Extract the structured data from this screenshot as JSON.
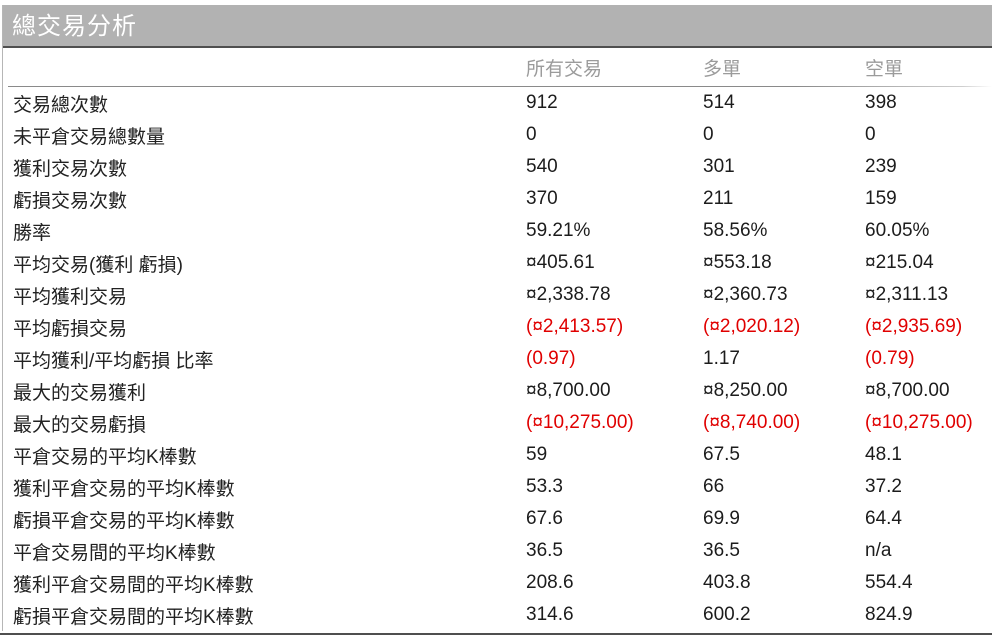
{
  "title": "總交易分析",
  "colors": {
    "title_bar_bg": "#b2b2b2",
    "title_text": "#ffffff",
    "header_text": "#9b9b9b",
    "body_text": "#1c1c1c",
    "negative_value": "#e00000"
  },
  "table": {
    "columns": [
      "所有交易",
      "多單",
      "空單"
    ],
    "rows": [
      {
        "label": "交易總次數",
        "values": [
          "912",
          "514",
          "398"
        ]
      },
      {
        "label": "未平倉交易總數量",
        "values": [
          "0",
          "0",
          "0"
        ]
      },
      {
        "label": "獲利交易次數",
        "values": [
          "540",
          "301",
          "239"
        ]
      },
      {
        "label": "虧損交易次數",
        "values": [
          "370",
          "211",
          "159"
        ]
      },
      {
        "label": "勝率",
        "values": [
          "59.21%",
          "58.56%",
          "60.05%"
        ]
      },
      {
        "label": "平均交易(獲利 虧損)",
        "values": [
          "¤405.61",
          "¤553.18",
          "¤215.04"
        ]
      },
      {
        "label": "平均獲利交易",
        "values": [
          "¤2,338.78",
          "¤2,360.73",
          "¤2,311.13"
        ]
      },
      {
        "label": "平均虧損交易",
        "values": [
          "(¤2,413.57)",
          "(¤2,020.12)",
          "(¤2,935.69)"
        ],
        "negative": [
          true,
          true,
          true
        ]
      },
      {
        "label": "平均獲利/平均虧損 比率",
        "values": [
          "(0.97)",
          "1.17",
          "(0.79)"
        ],
        "negative": [
          true,
          false,
          true
        ]
      },
      {
        "label": "最大的交易獲利",
        "values": [
          "¤8,700.00",
          "¤8,250.00",
          "¤8,700.00"
        ]
      },
      {
        "label": "最大的交易虧損",
        "values": [
          "(¤10,275.00)",
          "(¤8,740.00)",
          "(¤10,275.00)"
        ],
        "negative": [
          true,
          true,
          true
        ]
      },
      {
        "label": "平倉交易的平均K棒數",
        "values": [
          "59",
          "67.5",
          "48.1"
        ]
      },
      {
        "label": "獲利平倉交易的平均K棒數",
        "values": [
          "53.3",
          "66",
          "37.2"
        ]
      },
      {
        "label": "虧損平倉交易的平均K棒數",
        "values": [
          "67.6",
          "69.9",
          "64.4"
        ]
      },
      {
        "label": "平倉交易間的平均K棒數",
        "values": [
          "36.5",
          "36.5",
          "n/a"
        ]
      },
      {
        "label": "獲利平倉交易間的平均K棒數",
        "values": [
          "208.6",
          "403.8",
          "554.4"
        ]
      },
      {
        "label": "虧損平倉交易間的平均K棒數",
        "values": [
          "314.6",
          "600.2",
          "824.9"
        ]
      }
    ]
  }
}
